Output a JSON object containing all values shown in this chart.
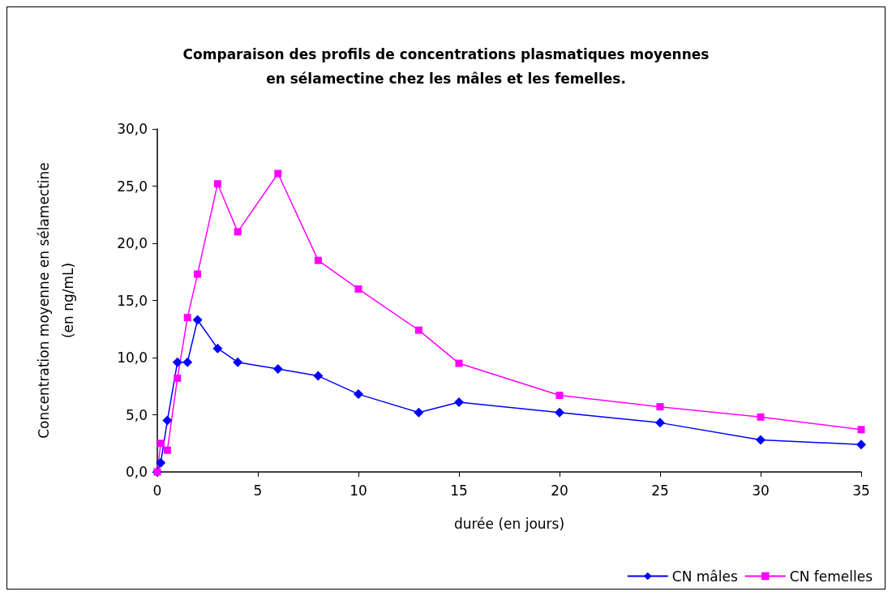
{
  "chart_data": {
    "type": "line",
    "title": "Comparaison des profils de concentrations plasmatiques moyennes\nen sélamectine chez les mâles et les femelles.",
    "xlabel": "durée (en jours)",
    "ylabel": "Concentration moyenne en sélamectine\n(en ng/mL)",
    "x": [
      0,
      0.17,
      0.5,
      1,
      1.5,
      2,
      3,
      4,
      6,
      8,
      10,
      13,
      15,
      20,
      25,
      30,
      35
    ],
    "series": [
      {
        "name": "CN mâles",
        "color": "#0000ff",
        "marker": "diamond",
        "values": [
          0,
          0.8,
          4.5,
          9.6,
          9.6,
          13.3,
          10.8,
          9.6,
          9.0,
          8.4,
          6.8,
          5.2,
          6.1,
          5.2,
          4.3,
          2.8,
          2.4
        ]
      },
      {
        "name": "CN femelles",
        "color": "#ff00ff",
        "marker": "square",
        "values": [
          0,
          2.5,
          1.9,
          8.2,
          13.5,
          17.3,
          25.2,
          21.0,
          26.1,
          18.5,
          16.0,
          12.4,
          9.5,
          6.7,
          5.7,
          4.8,
          3.7
        ]
      }
    ],
    "xlim": [
      0,
      35
    ],
    "xticks": [
      0,
      5,
      10,
      15,
      20,
      25,
      30,
      35
    ],
    "ylim": [
      0,
      30
    ],
    "yticks": [
      {
        "value": 0,
        "label": "0,0"
      },
      {
        "value": 5,
        "label": "5,0"
      },
      {
        "value": 10,
        "label": "10,0"
      },
      {
        "value": 15,
        "label": "15,0"
      },
      {
        "value": 20,
        "label": "20,0"
      },
      {
        "value": 25,
        "label": "25,0"
      },
      {
        "value": 30,
        "label": "30,0"
      }
    ],
    "grid": false,
    "legend": "bottom right",
    "line_style": "solid"
  }
}
